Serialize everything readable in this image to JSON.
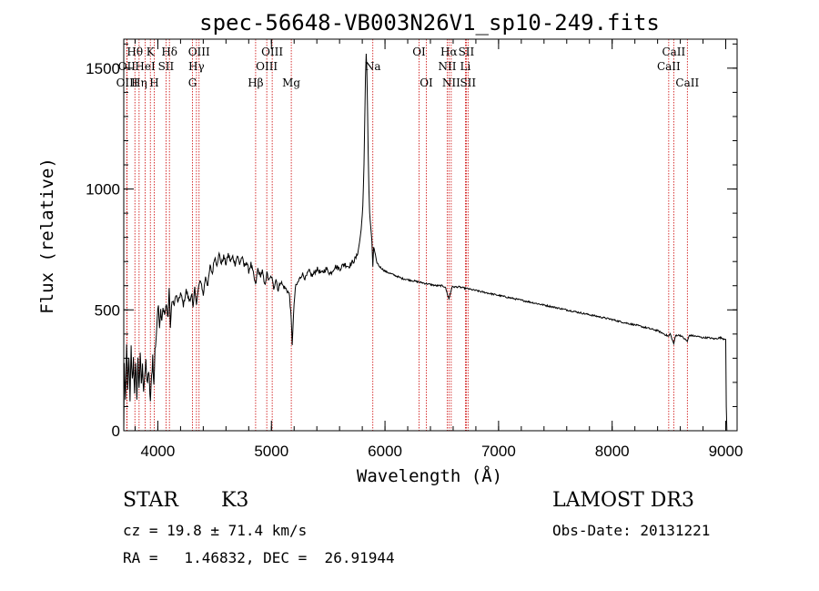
{
  "chart_data": {
    "type": "line",
    "title": "spec-56648-VB003N26V1_sp10-249.fits",
    "xlabel": "Wavelength (Å)",
    "ylabel": "Flux (relative)",
    "xlim": [
      3700,
      9100
    ],
    "ylim": [
      0,
      1620
    ],
    "x_ticks": [
      4000,
      5000,
      6000,
      7000,
      8000,
      9000
    ],
    "y_ticks": [
      0,
      500,
      1000,
      1500
    ],
    "x_minor_step": 200,
    "y_minor_step": 100,
    "grid": false,
    "series": [
      {
        "name": "flux",
        "anchors": [
          [
            3700,
            0
          ],
          [
            3705,
            280
          ],
          [
            3715,
            120
          ],
          [
            3725,
            350
          ],
          [
            3735,
            160
          ],
          [
            3745,
            320
          ],
          [
            3755,
            110
          ],
          [
            3765,
            340
          ],
          [
            3775,
            200
          ],
          [
            3785,
            300
          ],
          [
            3795,
            170
          ],
          [
            3805,
            260
          ],
          [
            3815,
            150
          ],
          [
            3825,
            290
          ],
          [
            3835,
            190
          ],
          [
            3845,
            300
          ],
          [
            3855,
            200
          ],
          [
            3865,
            260
          ],
          [
            3875,
            180
          ],
          [
            3885,
            240
          ],
          [
            3895,
            270
          ],
          [
            3905,
            190
          ],
          [
            3915,
            240
          ],
          [
            3925,
            200
          ],
          [
            3935,
            120
          ],
          [
            3945,
            220
          ],
          [
            3955,
            310
          ],
          [
            3965,
            180
          ],
          [
            3975,
            330
          ],
          [
            3985,
            390
          ],
          [
            3995,
            470
          ],
          [
            4005,
            520
          ],
          [
            4015,
            430
          ],
          [
            4025,
            500
          ],
          [
            4035,
            460
          ],
          [
            4045,
            510
          ],
          [
            4060,
            480
          ],
          [
            4075,
            520
          ],
          [
            4090,
            470
          ],
          [
            4100,
            590
          ],
          [
            4110,
            430
          ],
          [
            4125,
            540
          ],
          [
            4140,
            520
          ],
          [
            4160,
            560
          ],
          [
            4180,
            530
          ],
          [
            4200,
            570
          ],
          [
            4225,
            520
          ],
          [
            4250,
            580
          ],
          [
            4275,
            540
          ],
          [
            4300,
            560
          ],
          [
            4310,
            500
          ],
          [
            4325,
            600
          ],
          [
            4340,
            520
          ],
          [
            4360,
            600
          ],
          [
            4380,
            620
          ],
          [
            4400,
            560
          ],
          [
            4420,
            640
          ],
          [
            4440,
            600
          ],
          [
            4460,
            680
          ],
          [
            4480,
            650
          ],
          [
            4500,
            720
          ],
          [
            4520,
            690
          ],
          [
            4540,
            730
          ],
          [
            4560,
            690
          ],
          [
            4580,
            720
          ],
          [
            4600,
            690
          ],
          [
            4620,
            730
          ],
          [
            4640,
            700
          ],
          [
            4660,
            720
          ],
          [
            4680,
            690
          ],
          [
            4700,
            725
          ],
          [
            4720,
            690
          ],
          [
            4740,
            720
          ],
          [
            4760,
            680
          ],
          [
            4780,
            700
          ],
          [
            4800,
            660
          ],
          [
            4820,
            690
          ],
          [
            4840,
            650
          ],
          [
            4861,
            600
          ],
          [
            4880,
            670
          ],
          [
            4900,
            640
          ],
          [
            4920,
            660
          ],
          [
            4940,
            600
          ],
          [
            4960,
            650
          ],
          [
            4980,
            620
          ],
          [
            5000,
            640
          ],
          [
            5020,
            590
          ],
          [
            5040,
            630
          ],
          [
            5060,
            580
          ],
          [
            5080,
            620
          ],
          [
            5100,
            600
          ],
          [
            5120,
            590
          ],
          [
            5140,
            580
          ],
          [
            5160,
            560
          ],
          [
            5175,
            450
          ],
          [
            5183,
            360
          ],
          [
            5195,
            480
          ],
          [
            5210,
            590
          ],
          [
            5240,
            620
          ],
          [
            5270,
            650
          ],
          [
            5300,
            630
          ],
          [
            5330,
            660
          ],
          [
            5360,
            640
          ],
          [
            5400,
            670
          ],
          [
            5440,
            650
          ],
          [
            5480,
            670
          ],
          [
            5520,
            650
          ],
          [
            5560,
            680
          ],
          [
            5600,
            670
          ],
          [
            5640,
            690
          ],
          [
            5680,
            680
          ],
          [
            5720,
            700
          ],
          [
            5750,
            720
          ],
          [
            5770,
            760
          ],
          [
            5790,
            830
          ],
          [
            5805,
            930
          ],
          [
            5815,
            1100
          ],
          [
            5822,
            1300
          ],
          [
            5828,
            1460
          ],
          [
            5834,
            1560
          ],
          [
            5840,
            1500
          ],
          [
            5846,
            1330
          ],
          [
            5852,
            1150
          ],
          [
            5858,
            1000
          ],
          [
            5865,
            900
          ],
          [
            5875,
            840
          ],
          [
            5885,
            780
          ],
          [
            5893,
            680
          ],
          [
            5900,
            760
          ],
          [
            5910,
            740
          ],
          [
            5925,
            700
          ],
          [
            5950,
            680
          ],
          [
            5975,
            670
          ],
          [
            6000,
            660
          ],
          [
            6050,
            650
          ],
          [
            6100,
            640
          ],
          [
            6150,
            630
          ],
          [
            6200,
            625
          ],
          [
            6250,
            620
          ],
          [
            6300,
            615
          ],
          [
            6350,
            610
          ],
          [
            6400,
            605
          ],
          [
            6450,
            600
          ],
          [
            6500,
            600
          ],
          [
            6530,
            595
          ],
          [
            6563,
            545
          ],
          [
            6590,
            595
          ],
          [
            6650,
            595
          ],
          [
            6700,
            590
          ],
          [
            6750,
            585
          ],
          [
            6800,
            580
          ],
          [
            6900,
            570
          ],
          [
            7000,
            560
          ],
          [
            7100,
            550
          ],
          [
            7200,
            540
          ],
          [
            7300,
            530
          ],
          [
            7400,
            520
          ],
          [
            7500,
            510
          ],
          [
            7600,
            500
          ],
          [
            7700,
            490
          ],
          [
            7800,
            480
          ],
          [
            7900,
            470
          ],
          [
            8000,
            460
          ],
          [
            8100,
            448
          ],
          [
            8200,
            438
          ],
          [
            8300,
            426
          ],
          [
            8400,
            414
          ],
          [
            8498,
            390
          ],
          [
            8510,
            402
          ],
          [
            8542,
            360
          ],
          [
            8560,
            395
          ],
          [
            8600,
            395
          ],
          [
            8662,
            370
          ],
          [
            8680,
            395
          ],
          [
            8750,
            390
          ],
          [
            8800,
            385
          ],
          [
            8850,
            385
          ],
          [
            8900,
            380
          ],
          [
            8950,
            385
          ],
          [
            9000,
            378
          ],
          [
            9005,
            100
          ],
          [
            9010,
            0
          ]
        ]
      }
    ],
    "spectral_lines": [
      {
        "name": "Hθ",
        "wl": 3798,
        "row": 1
      },
      {
        "name": "OII",
        "wl": 3727,
        "row": 2
      },
      {
        "name": "OIII",
        "wl": 3729,
        "row": 3
      },
      {
        "name": "HeI",
        "wl": 3889,
        "row": 2
      },
      {
        "name": "Hη",
        "wl": 3835,
        "row": 3
      },
      {
        "name": "K",
        "wl": 3934,
        "row": 1
      },
      {
        "name": "SII",
        "wl": 4072,
        "row": 2
      },
      {
        "name": "H",
        "wl": 3968,
        "row": 3
      },
      {
        "name": "Hδ",
        "wl": 4102,
        "row": 1
      },
      {
        "name": "OIII",
        "wl": 4363,
        "row": 1
      },
      {
        "name": "Hγ",
        "wl": 4340,
        "row": 2
      },
      {
        "name": "G",
        "wl": 4305,
        "row": 3
      },
      {
        "name": "Hβ",
        "wl": 4861,
        "row": 3
      },
      {
        "name": "OIII",
        "wl": 5007,
        "row": 1
      },
      {
        "name": "OIII",
        "wl": 4959,
        "row": 2
      },
      {
        "name": "Mg",
        "wl": 5175,
        "row": 3
      },
      {
        "name": "Na",
        "wl": 5893,
        "row": 2
      },
      {
        "name": "OI",
        "wl": 6300,
        "row": 1
      },
      {
        "name": "OI",
        "wl": 6364,
        "row": 3
      },
      {
        "name": "Hα",
        "wl": 6563,
        "row": 1
      },
      {
        "name": "SII",
        "wl": 6716,
        "row": 1
      },
      {
        "name": "NII",
        "wl": 6548,
        "row": 2
      },
      {
        "name": "Li",
        "wl": 6708,
        "row": 2
      },
      {
        "name": "NII",
        "wl": 6583,
        "row": 3
      },
      {
        "name": "SII",
        "wl": 6731,
        "row": 3
      },
      {
        "name": "CaII",
        "wl": 8542,
        "row": 1
      },
      {
        "name": "CaII",
        "wl": 8498,
        "row": 2
      },
      {
        "name": "CaII",
        "wl": 8662,
        "row": 3
      }
    ]
  },
  "info": {
    "class": "STAR",
    "subclass": "K3",
    "survey": "LAMOST DR3",
    "cz": "cz = 19.8 ± 71.4 km/s",
    "obs_date": "Obs-Date: 20131221",
    "coords": "RA =   1.46832, DEC =  26.91944"
  },
  "colors": {
    "line": "#000000",
    "marker": "#cc0000",
    "axis": "#000000"
  }
}
